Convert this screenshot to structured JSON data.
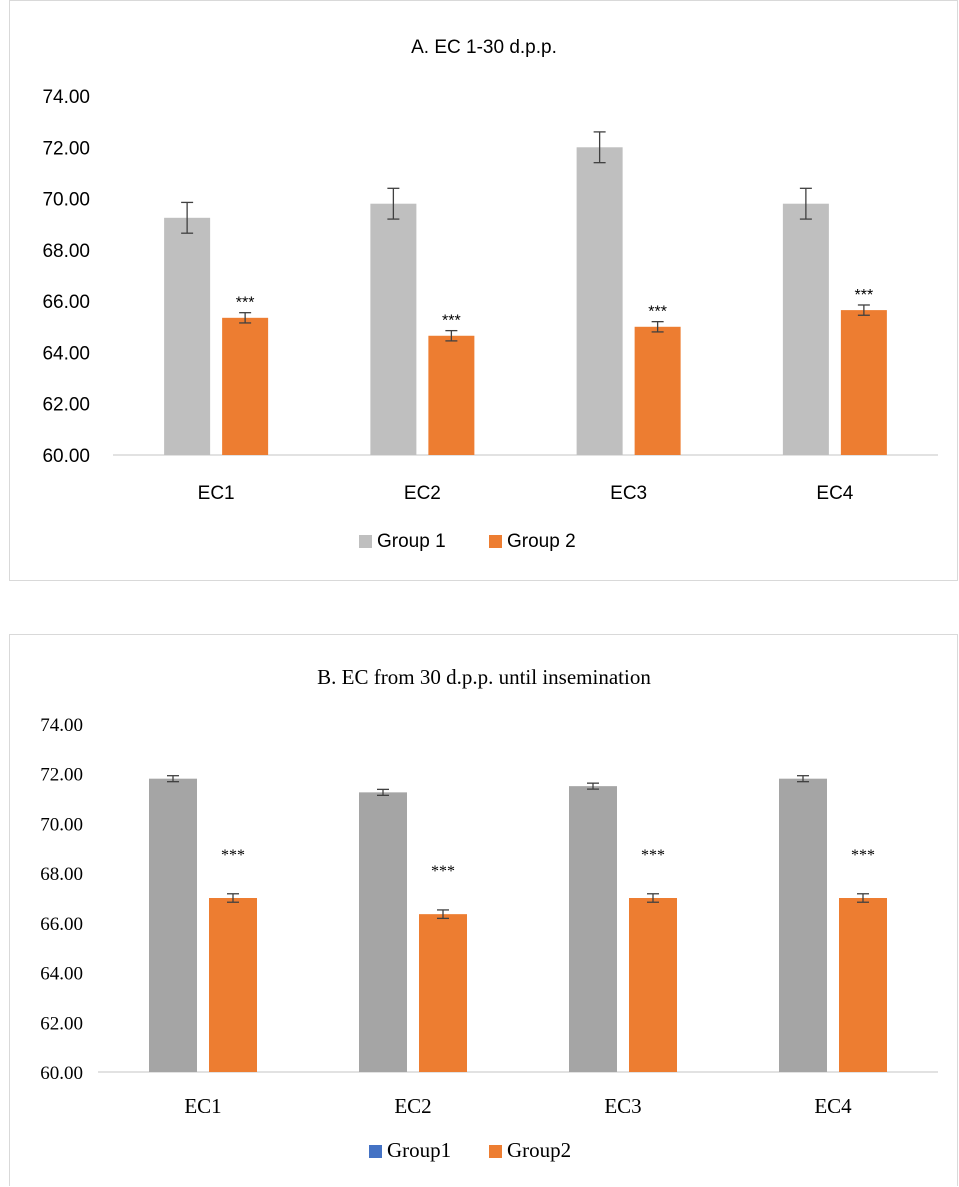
{
  "chart_data": [
    {
      "type": "bar",
      "title": "A. EC 1-30 d.p.p.",
      "categories": [
        "EC1",
        "EC2",
        "EC3",
        "EC4"
      ],
      "series": [
        {
          "name": "Group 1",
          "color": "#bfbfbf",
          "values": [
            69.25,
            69.8,
            72.0,
            69.8
          ],
          "errors": [
            0.6,
            0.6,
            0.6,
            0.6
          ]
        },
        {
          "name": "Group 2",
          "color": "#ed7d31",
          "values": [
            65.35,
            64.65,
            65.0,
            65.65
          ],
          "errors": [
            0.2,
            0.2,
            0.2,
            0.2
          ]
        }
      ],
      "annotations": [
        "***",
        "***",
        "***",
        "***"
      ],
      "yticks": [
        "60.00",
        "62.00",
        "64.00",
        "66.00",
        "68.00",
        "70.00",
        "72.00",
        "74.00"
      ],
      "ylim": [
        60,
        74
      ],
      "grid": false,
      "legend_position": "bottom"
    },
    {
      "type": "bar",
      "title": "B. EC from 30 d.p.p. until insemination",
      "categories": [
        "EC1",
        "EC2",
        "EC3",
        "EC4"
      ],
      "series": [
        {
          "name": "Group1",
          "color": "#a5a5a5",
          "legend_color": "#4472c4",
          "values": [
            71.8,
            71.25,
            71.5,
            71.8
          ],
          "errors": [
            0.12,
            0.12,
            0.12,
            0.12
          ]
        },
        {
          "name": "Group2",
          "color": "#ed7d31",
          "values": [
            67.0,
            66.35,
            67.0,
            67.0
          ],
          "errors": [
            0.17,
            0.17,
            0.17,
            0.17
          ]
        }
      ],
      "annotations": [
        "***",
        "***",
        "***",
        "***"
      ],
      "yticks": [
        "60.00",
        "62.00",
        "64.00",
        "66.00",
        "68.00",
        "70.00",
        "72.00",
        "74.00"
      ],
      "ylim": [
        60,
        74
      ],
      "grid": false,
      "legend_position": "bottom"
    }
  ]
}
